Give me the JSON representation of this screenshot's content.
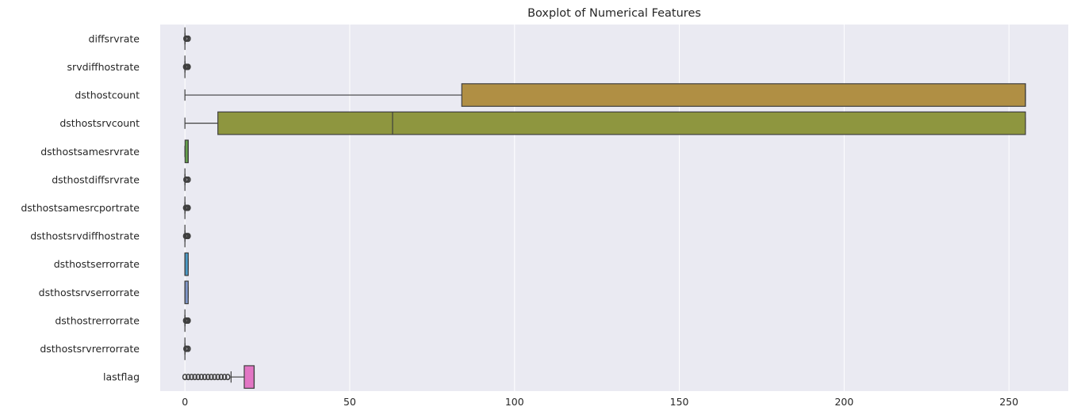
{
  "chart_data": {
    "type": "boxplot",
    "orientation": "horizontal",
    "title": "Boxplot of Numerical Features",
    "xlabel": "",
    "ylabel": "",
    "xlim": [
      -7.5,
      268
    ],
    "xticks": [
      0,
      50,
      100,
      150,
      200,
      250
    ],
    "grid": true,
    "legend": "none",
    "background": "#eaeaf2",
    "outlier_color": "#3f3f3f",
    "categories": [
      "diffsrvrate",
      "srvdiffhostrate",
      "dsthostcount",
      "dsthostsrvcount",
      "dsthostsamesrvrate",
      "dsthostdiffsrvrate",
      "dsthostsamesrcportrate",
      "dsthostsrvdiffhostrate",
      "dsthostserrorrate",
      "dsthostsrvserrorrate",
      "dsthostrerrorrate",
      "dsthostsrvrerrorrate",
      "lastflag"
    ],
    "boxes": [
      {
        "min": 0,
        "q1": 0,
        "median": 0,
        "q3": 0,
        "max": 0,
        "outliers": [
          0.3,
          0.6,
          1.0
        ],
        "color": "#5b8fbf"
      },
      {
        "min": 0,
        "q1": 0,
        "median": 0,
        "q3": 0,
        "max": 0,
        "outliers": [
          0.2,
          0.5,
          0.8,
          1.0
        ],
        "color": "#c87a6a"
      },
      {
        "min": 0,
        "q1": 84,
        "median": 255,
        "q3": 255,
        "max": 255,
        "outliers": [],
        "color": "#b08f44"
      },
      {
        "min": 0,
        "q1": 10,
        "median": 63,
        "q3": 255,
        "max": 255,
        "outliers": [],
        "color": "#8e963f"
      },
      {
        "min": 0,
        "q1": 0.05,
        "median": 1.0,
        "q3": 1.0,
        "max": 1.0,
        "outliers": [],
        "color": "#65a04c"
      },
      {
        "min": 0,
        "q1": 0,
        "median": 0,
        "q3": 0,
        "max": 0,
        "outliers": [
          0.3,
          0.6,
          1.0
        ],
        "color": "#4aa37a"
      },
      {
        "min": 0,
        "q1": 0,
        "median": 0,
        "q3": 0,
        "max": 0,
        "outliers": [
          0.2,
          0.5,
          0.8,
          1.0
        ],
        "color": "#4aa39c"
      },
      {
        "min": 0,
        "q1": 0,
        "median": 0,
        "q3": 0,
        "max": 0,
        "outliers": [
          0.2,
          0.5,
          0.8,
          1.0
        ],
        "color": "#4d9fb0"
      },
      {
        "min": 0,
        "q1": 0,
        "median": 0,
        "q3": 1.0,
        "max": 1.0,
        "outliers": [],
        "color": "#4c9ac6"
      },
      {
        "min": 0,
        "q1": 0,
        "median": 0,
        "q3": 1.0,
        "max": 1.0,
        "outliers": [],
        "color": "#7f96c8"
      },
      {
        "min": 0,
        "q1": 0,
        "median": 0,
        "q3": 0,
        "max": 0,
        "outliers": [
          0.2,
          0.5,
          0.8,
          1.0
        ],
        "color": "#a38cc8"
      },
      {
        "min": 0,
        "q1": 0,
        "median": 0,
        "q3": 0,
        "max": 0,
        "outliers": [
          0.3,
          0.6,
          1.0
        ],
        "color": "#c784c2"
      },
      {
        "min": 14,
        "q1": 18,
        "median": 21,
        "q3": 21,
        "max": 21,
        "outliers": [
          0,
          1,
          2,
          3,
          4,
          5,
          6,
          7,
          8,
          9,
          10,
          11,
          12,
          13
        ],
        "color": "#e276c4"
      }
    ]
  }
}
